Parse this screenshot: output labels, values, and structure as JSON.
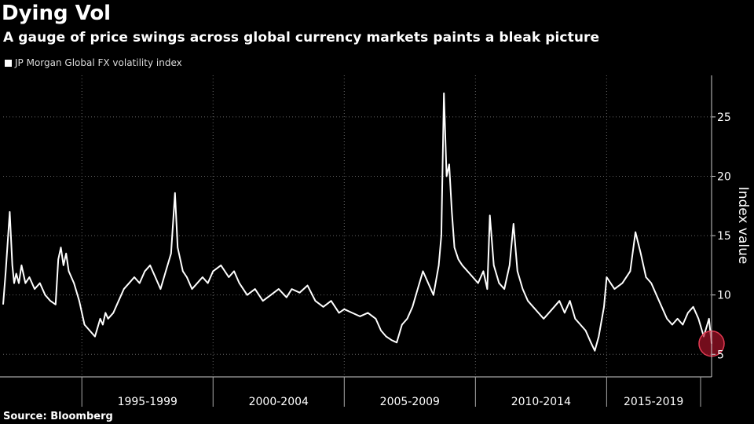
{
  "title": "Dying Vol",
  "subtitle": "A gauge of price swings across global currency markets paints a bleak picture",
  "legend_label": "JP Morgan Global FX volatility index",
  "source": "Source: Bloomberg",
  "chart_data": {
    "type": "line",
    "ylabel": "Index value",
    "yticks": [
      5,
      10,
      15,
      20,
      25
    ],
    "ylim": [
      3.1,
      28.5
    ],
    "xlim": [
      1992.0,
      2019.0
    ],
    "x_period_labels": [
      {
        "label": "1995-1999",
        "start": 1995,
        "end": 2000
      },
      {
        "label": "2000-2004",
        "start": 2000,
        "end": 2005
      },
      {
        "label": "2005-2009",
        "start": 2005,
        "end": 2010
      },
      {
        "label": "2010-2014",
        "start": 2010,
        "end": 2015
      },
      {
        "label": "2015-2019",
        "start": 2015,
        "end": 2020
      }
    ],
    "series": [
      {
        "name": "JP Morgan Global FX volatility index",
        "color": "#ffffff",
        "x": [
          1992.0,
          1992.1,
          1992.25,
          1992.35,
          1992.42,
          1992.5,
          1992.6,
          1992.7,
          1992.85,
          1993.0,
          1993.2,
          1993.4,
          1993.6,
          1993.8,
          1994.0,
          1994.1,
          1994.2,
          1994.3,
          1994.4,
          1994.5,
          1994.7,
          1994.9,
          1995.1,
          1995.3,
          1995.5,
          1995.7,
          1995.8,
          1995.9,
          1996.0,
          1996.2,
          1996.4,
          1996.6,
          1996.8,
          1997.0,
          1997.2,
          1997.4,
          1997.6,
          1997.8,
          1998.0,
          1998.2,
          1998.4,
          1998.55,
          1998.65,
          1998.75,
          1998.85,
          1999.0,
          1999.2,
          1999.4,
          1999.6,
          1999.8,
          2000.0,
          2000.3,
          2000.6,
          2000.8,
          2001.0,
          2001.3,
          2001.6,
          2001.9,
          2002.2,
          2002.5,
          2002.8,
          2003.0,
          2003.3,
          2003.6,
          2003.9,
          2004.2,
          2004.5,
          2004.8,
          2005.0,
          2005.3,
          2005.6,
          2005.9,
          2006.2,
          2006.4,
          2006.6,
          2006.8,
          2007.0,
          2007.2,
          2007.4,
          2007.6,
          2007.8,
          2008.0,
          2008.2,
          2008.4,
          2008.6,
          2008.7,
          2008.8,
          2008.9,
          2009.0,
          2009.1,
          2009.2,
          2009.35,
          2009.5,
          2009.7,
          2009.9,
          2010.1,
          2010.3,
          2010.45,
          2010.55,
          2010.7,
          2010.9,
          2011.1,
          2011.3,
          2011.45,
          2011.6,
          2011.8,
          2012.0,
          2012.2,
          2012.4,
          2012.6,
          2012.8,
          2013.0,
          2013.2,
          2013.4,
          2013.6,
          2013.8,
          2014.0,
          2014.2,
          2014.4,
          2014.55,
          2014.7,
          2014.9,
          2015.0,
          2015.3,
          2015.6,
          2015.9,
          2016.1,
          2016.3,
          2016.5,
          2016.7,
          2016.9,
          2017.1,
          2017.3,
          2017.5,
          2017.7,
          2017.9,
          2018.1,
          2018.3,
          2018.5,
          2018.7,
          2018.9,
          2019.0
        ],
        "y": [
          9.2,
          12.0,
          17.0,
          12.5,
          11.0,
          11.8,
          11.0,
          12.5,
          11.0,
          11.5,
          10.5,
          11.0,
          10.0,
          9.5,
          9.2,
          13.0,
          14.0,
          12.5,
          13.5,
          12.0,
          11.0,
          9.5,
          7.5,
          7.0,
          6.5,
          8.0,
          7.5,
          8.5,
          8.0,
          8.5,
          9.5,
          10.5,
          11.0,
          11.5,
          11.0,
          12.0,
          12.5,
          11.5,
          10.5,
          12.0,
          13.5,
          18.6,
          14.0,
          13.0,
          12.0,
          11.5,
          10.5,
          11.0,
          11.5,
          11.0,
          12.0,
          12.5,
          11.5,
          12.0,
          11.0,
          10.0,
          10.5,
          9.5,
          10.0,
          10.5,
          9.8,
          10.5,
          10.2,
          10.8,
          9.5,
          9.0,
          9.5,
          8.5,
          8.8,
          8.5,
          8.2,
          8.5,
          8.0,
          7.0,
          6.5,
          6.2,
          6.0,
          7.5,
          8.0,
          9.0,
          10.5,
          12.0,
          11.0,
          10.0,
          12.5,
          15.0,
          27.0,
          20.0,
          21.0,
          17.0,
          14.0,
          13.0,
          12.5,
          12.0,
          11.5,
          11.0,
          12.0,
          10.5,
          16.7,
          12.5,
          11.0,
          10.5,
          12.5,
          16.0,
          12.0,
          10.5,
          9.5,
          9.0,
          8.5,
          8.0,
          8.5,
          9.0,
          9.5,
          8.5,
          9.5,
          8.0,
          7.5,
          7.0,
          6.0,
          5.3,
          6.5,
          9.0,
          11.5,
          10.5,
          11.0,
          12.0,
          15.3,
          13.5,
          11.5,
          11.0,
          10.0,
          9.0,
          8.0,
          7.5,
          8.0,
          7.5,
          8.5,
          9.0,
          8.0,
          6.5,
          8.0,
          5.9
        ]
      }
    ]
  }
}
